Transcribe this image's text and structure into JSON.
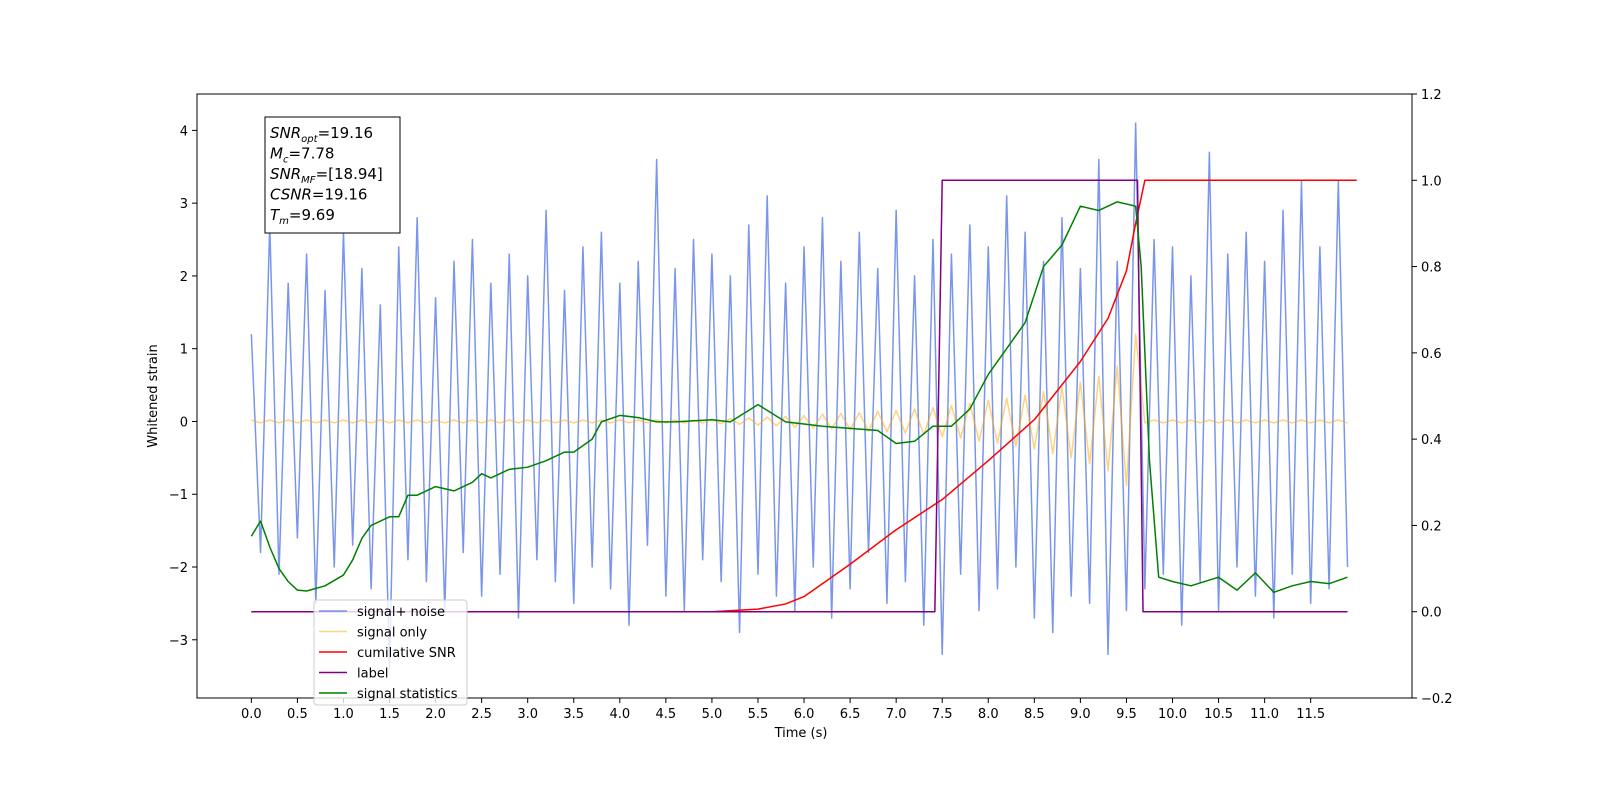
{
  "chart_data": {
    "type": "line",
    "xlabel": "Time (s)",
    "ylabel": "Whitened strain",
    "xlim": [
      -0.59,
      12.6
    ],
    "ylim": [
      -3.8,
      4.5
    ],
    "y2lim": [
      -0.2,
      1.2
    ],
    "xticks": [
      {
        "value": 0,
        "label": "0.0"
      },
      0.5,
      {
        "value": 1,
        "label": "1.0"
      },
      1.5,
      {
        "value": 2,
        "label": "2.0"
      },
      2.5,
      {
        "value": 3,
        "label": "3.0"
      },
      3.5,
      {
        "value": 4,
        "label": "4.0"
      },
      4.5,
      {
        "value": 5,
        "label": "5.0"
      },
      5.5,
      {
        "value": 6,
        "label": "6.0"
      },
      6.5,
      {
        "value": 7,
        "label": "7.0"
      },
      7.5,
      {
        "value": 8,
        "label": "8.0"
      },
      8.5,
      {
        "value": 9,
        "label": "9.0"
      },
      9.5,
      {
        "value": 10,
        "label": "10.0"
      },
      10.5,
      {
        "value": 11,
        "label": "11.0"
      },
      11.5
    ],
    "yticks": [
      {
        "value": -3,
        "label": "−3"
      },
      {
        "value": -2,
        "label": "−2"
      },
      {
        "value": -1,
        "label": "−1"
      },
      0,
      1,
      2,
      3,
      4
    ],
    "y2ticks": [
      {
        "value": -0.2,
        "label": "−0.2"
      },
      {
        "value": 0,
        "label": "0.0"
      },
      0.2,
      0.4,
      0.6,
      0.8,
      {
        "value": 1,
        "label": "1.0"
      },
      1.2
    ],
    "annotation": [
      {
        "symbol": "SNR",
        "sub": "opt",
        "text": "=19.16"
      },
      {
        "symbol": "M",
        "sub": "c",
        "text": "=7.78"
      },
      {
        "symbol": "SNR",
        "sub": "MF",
        "text": "=[18.94]"
      },
      {
        "symbol": "CSNR",
        "text": "=19.16"
      },
      {
        "symbol": "T",
        "sub": "m",
        "text": "=9.69"
      }
    ],
    "x": [
      0,
      0.1,
      0.2,
      0.3,
      0.4,
      0.5,
      0.6,
      0.7,
      0.8,
      0.9,
      1,
      1.1,
      1.2,
      1.3,
      1.4,
      1.5,
      1.6,
      1.7,
      1.8,
      1.9,
      2,
      2.1,
      2.2,
      2.3,
      2.4,
      2.5,
      2.6,
      2.7,
      2.8,
      2.9,
      3,
      3.1,
      3.2,
      3.3,
      3.4,
      3.5,
      3.6,
      3.7,
      3.8,
      3.9,
      4,
      4.1,
      4.2,
      4.3,
      4.4,
      4.5,
      4.6,
      4.7,
      4.8,
      4.9,
      5,
      5.1,
      5.2,
      5.3,
      5.4,
      5.5,
      5.6,
      5.7,
      5.8,
      5.9,
      6,
      6.1,
      6.2,
      6.3,
      6.4,
      6.5,
      6.6,
      6.7,
      6.8,
      6.9,
      7,
      7.1,
      7.2,
      7.3,
      7.4,
      7.5,
      7.6,
      7.7,
      7.8,
      7.9,
      8,
      8.1,
      8.2,
      8.3,
      8.4,
      8.5,
      8.6,
      8.7,
      8.8,
      8.9,
      9,
      9.1,
      9.2,
      9.3,
      9.4,
      9.5,
      9.6,
      9.7,
      9.8,
      9.9,
      10,
      10.1,
      10.2,
      10.3,
      10.4,
      10.5,
      10.6,
      10.7,
      10.8,
      10.9,
      11,
      11.1,
      11.2,
      11.3,
      11.4,
      11.5,
      11.6,
      11.7,
      11.8,
      11.9
    ],
    "series": [
      {
        "name": "signal+ noise",
        "color": "royalblue",
        "alpha": 0.7,
        "values": [
          1.2,
          -1.8,
          2.7,
          -2.1,
          1.9,
          -1.6,
          2.3,
          -2.5,
          1.8,
          -2.0,
          2.6,
          -1.7,
          2.1,
          -2.3,
          1.6,
          -3.4,
          2.4,
          -1.9,
          2.8,
          -2.2,
          1.7,
          -2.6,
          2.2,
          -1.8,
          2.5,
          -2.4,
          1.9,
          -2.1,
          2.3,
          -2.7,
          2.0,
          -1.9,
          2.9,
          -2.2,
          1.8,
          -2.5,
          2.4,
          -2.0,
          2.6,
          -2.3,
          1.9,
          -2.8,
          2.2,
          -1.7,
          3.6,
          -2.4,
          2.1,
          -2.6,
          2.5,
          -1.9,
          2.3,
          -2.2,
          2.0,
          -2.9,
          2.7,
          -2.1,
          3.1,
          -2.4,
          1.9,
          -2.6,
          2.4,
          -2.0,
          2.8,
          -2.7,
          2.2,
          -2.3,
          2.6,
          -1.8,
          2.1,
          -2.5,
          2.9,
          -2.2,
          2.0,
          -2.8,
          2.5,
          -3.2,
          2.3,
          -2.1,
          2.7,
          -2.6,
          2.4,
          -2.3,
          3.1,
          -2.0,
          2.6,
          -2.7,
          2.2,
          -2.9,
          2.8,
          -2.4,
          2.1,
          -2.5,
          3.6,
          -3.2,
          2.2,
          -2.6,
          4.1,
          -2.3,
          2.5,
          -2.1,
          2.4,
          -2.8,
          2.0,
          -2.2,
          3.7,
          -2.6,
          2.3,
          -2.0,
          2.6,
          -2.4,
          2.2,
          -2.7,
          2.9,
          -2.1,
          3.3,
          -2.5,
          2.4,
          -2.3,
          3.3,
          -2.0
        ]
      },
      {
        "name": "signal only",
        "color": "orange",
        "alpha": 0.5,
        "values": [
          0.02,
          -0.02,
          0.02,
          -0.02,
          0.02,
          -0.02,
          0.02,
          -0.02,
          0.02,
          -0.02,
          0.02,
          -0.02,
          0.02,
          -0.02,
          0.02,
          -0.02,
          0.02,
          -0.02,
          0.02,
          -0.02,
          0.02,
          -0.02,
          0.02,
          -0.02,
          0.02,
          -0.02,
          0.02,
          -0.02,
          0.02,
          -0.02,
          0.02,
          -0.02,
          0.02,
          -0.02,
          0.02,
          -0.02,
          0.02,
          -0.02,
          0.02,
          -0.02,
          0.02,
          -0.02,
          0.02,
          -0.02,
          0.02,
          -0.02,
          0.02,
          -0.02,
          0.02,
          -0.02,
          0.03,
          -0.03,
          0.04,
          -0.04,
          0.05,
          -0.05,
          0.06,
          -0.06,
          0.07,
          -0.08,
          0.08,
          -0.09,
          0.1,
          -0.1,
          0.11,
          -0.11,
          0.12,
          -0.13,
          0.14,
          -0.14,
          0.15,
          -0.16,
          0.17,
          -0.18,
          0.19,
          -0.21,
          0.22,
          -0.23,
          0.25,
          -0.27,
          0.29,
          -0.3,
          0.32,
          -0.34,
          0.36,
          -0.38,
          0.41,
          -0.44,
          0.47,
          -0.5,
          0.54,
          -0.58,
          0.62,
          -0.68,
          0.76,
          -0.88,
          1.2,
          -0.02,
          0.02,
          -0.02,
          0.02,
          -0.02,
          0.02,
          -0.02,
          0.02,
          -0.02,
          0.02,
          -0.02,
          0.02,
          -0.02,
          0.02,
          -0.02,
          0.02,
          -0.02,
          0.02,
          -0.02,
          0.02,
          -0.02,
          0.02,
          -0.02
        ]
      },
      {
        "name": "cumilative SNR",
        "color": "red",
        "axis": "y2",
        "x": [
          0,
          5,
          5.5,
          5.8,
          6,
          6.5,
          7,
          7.5,
          8,
          8.5,
          9,
          9.3,
          9.5,
          9.6,
          9.7,
          12
        ],
        "values": [
          0,
          0,
          0.006,
          0.018,
          0.035,
          0.11,
          0.19,
          0.26,
          0.35,
          0.445,
          0.58,
          0.68,
          0.79,
          0.9,
          1,
          1
        ]
      },
      {
        "name": "label",
        "color": "purple",
        "axis": "y2",
        "x": [
          0,
          7.42,
          7.5,
          9.62,
          9.68,
          11.9
        ],
        "values": [
          0,
          0,
          1,
          1,
          0,
          0
        ]
      },
      {
        "name": "signal statistics",
        "color": "green",
        "axis": "y2",
        "x": [
          0,
          0.1,
          0.2,
          0.3,
          0.4,
          0.5,
          0.6,
          0.8,
          1,
          1.1,
          1.2,
          1.3,
          1.5,
          1.6,
          1.7,
          1.8,
          2,
          2.2,
          2.4,
          2.5,
          2.6,
          2.8,
          3,
          3.2,
          3.4,
          3.5,
          3.7,
          3.8,
          4,
          4.2,
          4.4,
          4.6,
          5,
          5.2,
          5.5,
          5.8,
          6,
          6.2,
          6.5,
          6.8,
          7,
          7.2,
          7.4,
          7.6,
          7.8,
          8,
          8.2,
          8.4,
          8.6,
          8.8,
          9,
          9.2,
          9.4,
          9.6,
          9.66,
          9.75,
          9.85,
          10,
          10.2,
          10.5,
          10.7,
          10.9,
          11.1,
          11.3,
          11.5,
          11.7,
          11.9
        ],
        "values": [
          0.175,
          0.21,
          0.15,
          0.1,
          0.07,
          0.05,
          0.048,
          0.06,
          0.085,
          0.12,
          0.17,
          0.2,
          0.22,
          0.22,
          0.27,
          0.27,
          0.29,
          0.28,
          0.3,
          0.32,
          0.31,
          0.33,
          0.335,
          0.35,
          0.37,
          0.37,
          0.4,
          0.44,
          0.455,
          0.45,
          0.44,
          0.44,
          0.445,
          0.44,
          0.48,
          0.44,
          0.435,
          0.43,
          0.425,
          0.42,
          0.39,
          0.395,
          0.43,
          0.43,
          0.47,
          0.55,
          0.61,
          0.67,
          0.8,
          0.85,
          0.94,
          0.93,
          0.95,
          0.94,
          0.8,
          0.35,
          0.08,
          0.07,
          0.06,
          0.08,
          0.05,
          0.09,
          0.045,
          0.06,
          0.07,
          0.065,
          0.08
        ]
      }
    ]
  }
}
